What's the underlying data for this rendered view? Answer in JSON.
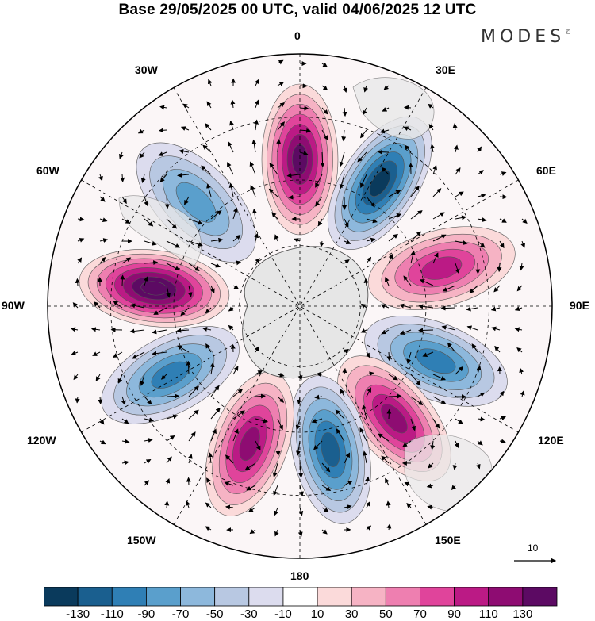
{
  "header": {
    "title": "Base 29/05/2025 00 UTC, valid 04/06/2025 12 UTC",
    "logo": "MODES",
    "logo_mark": "©"
  },
  "map": {
    "projection": "south-polar-stereographic",
    "longitude_labels": {
      "lon_0": "0",
      "lon_30e": "30E",
      "lon_60e": "60E",
      "lon_90e": "90E",
      "lon_120e": "120E",
      "lon_150e": "150E",
      "lon_180": "180",
      "lon_150w": "150W",
      "lon_120w": "120W",
      "lon_90w": "90W",
      "lon_60w": "60W",
      "lon_30w": "30W"
    },
    "vector_scale_label": "10",
    "anomaly_centers": [
      {
        "lon_deg": 0,
        "sign": "positive",
        "peak_level": 110
      },
      {
        "lon_deg": 33,
        "sign": "negative",
        "peak_level": -110
      },
      {
        "lon_deg": 75,
        "sign": "positive",
        "peak_level": 70
      },
      {
        "lon_deg": 112,
        "sign": "negative",
        "peak_level": -70
      },
      {
        "lon_deg": 140,
        "sign": "positive",
        "peak_level": 90
      },
      {
        "lon_deg": 168,
        "sign": "negative",
        "peak_level": -90
      },
      {
        "lon_deg": 160,
        "sign": "positive",
        "peak_level": 90,
        "hemisphere_side": "west"
      },
      {
        "lon_deg": 118,
        "sign": "negative",
        "peak_level": -70,
        "hemisphere_side": "west"
      },
      {
        "lon_deg": 83,
        "sign": "positive",
        "peak_level": 130,
        "hemisphere_side": "west"
      },
      {
        "lon_deg": 45,
        "sign": "negative",
        "peak_level": -50,
        "hemisphere_side": "west"
      }
    ]
  },
  "colorbar": {
    "tick_labels": [
      "-130",
      "-110",
      "-90",
      "-70",
      "-50",
      "-30",
      "-10",
      "10",
      "30",
      "50",
      "70",
      "90",
      "110",
      "130"
    ],
    "colors": [
      "#0a3a5c",
      "#1a5f8f",
      "#2f7fb5",
      "#5a9fcc",
      "#8db8dc",
      "#b8c8e2",
      "#dcdcee",
      "#ffffff",
      "#fbdada",
      "#f6b3c4",
      "#ee7fb0",
      "#e0449b",
      "#bb1a85",
      "#8e0c72",
      "#5c0a63"
    ]
  }
}
